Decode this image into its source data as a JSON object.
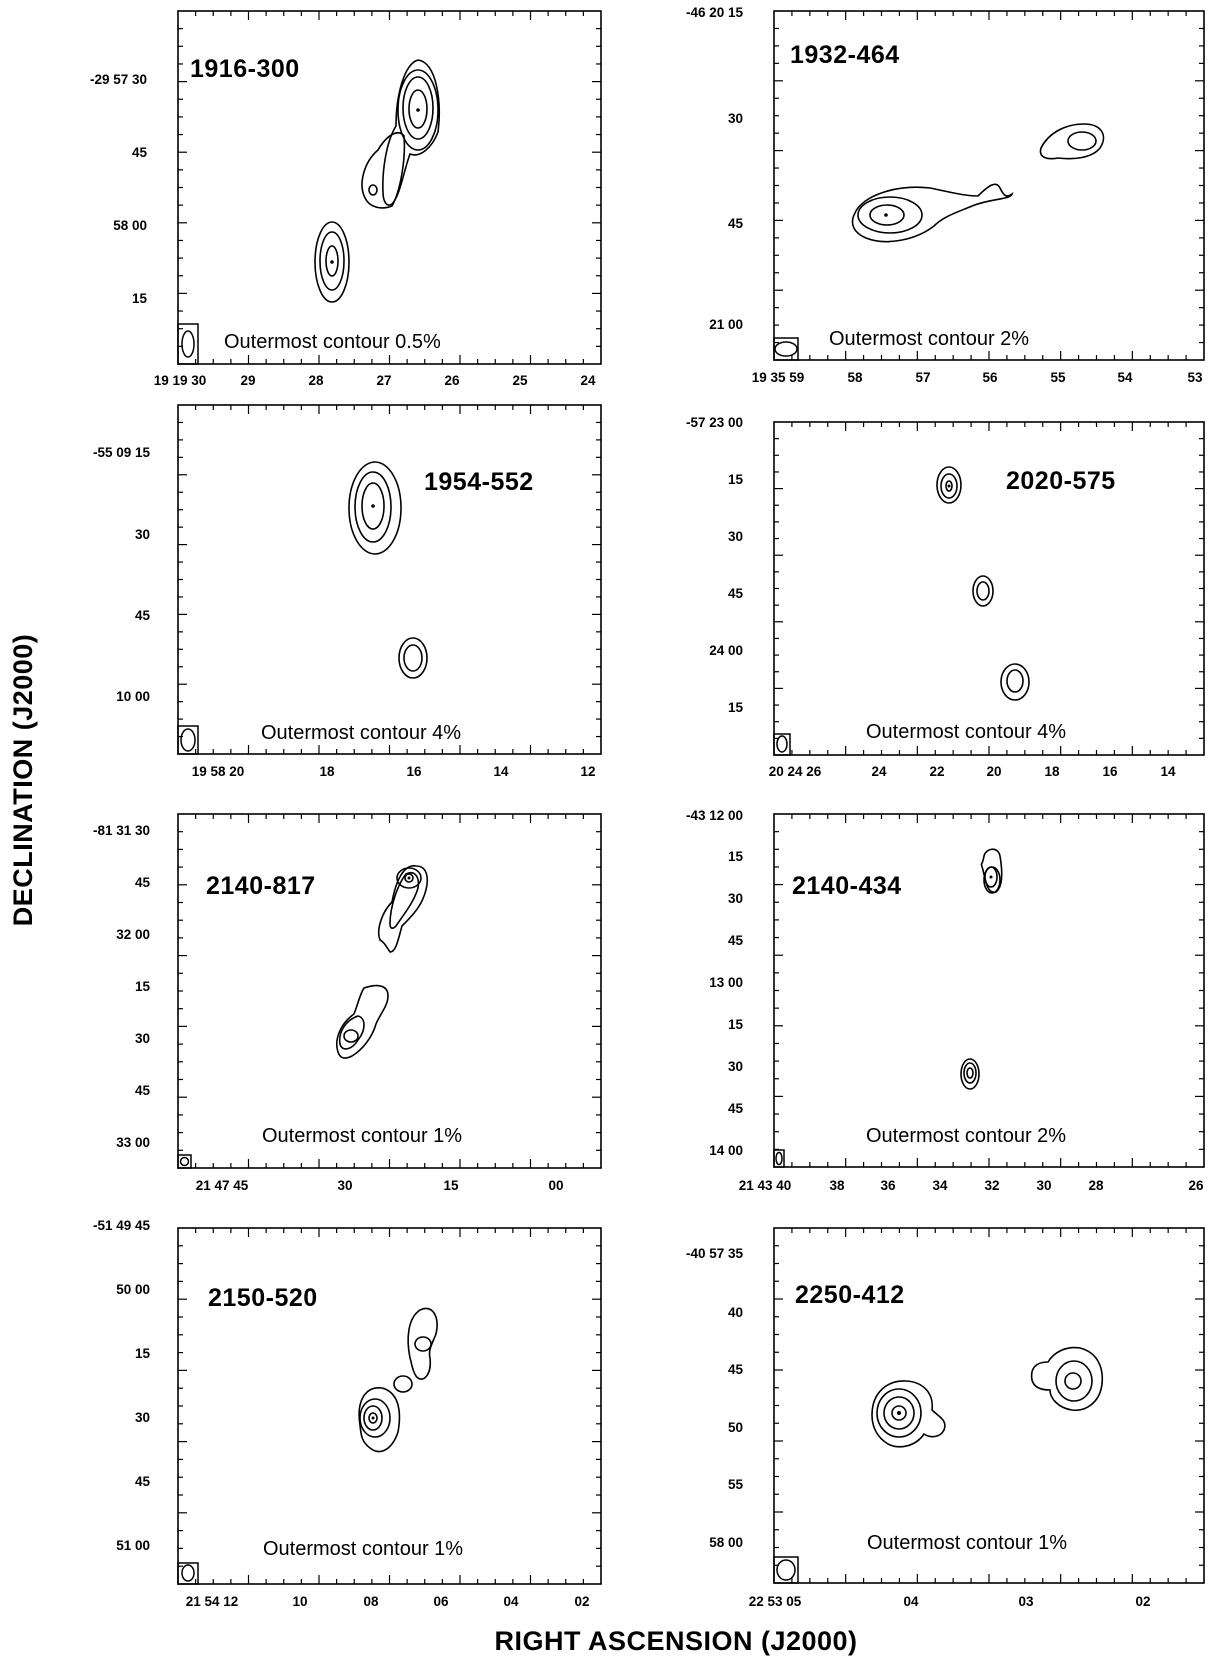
{
  "figure": {
    "ylabel": "DECLINATION   (J2000)",
    "xlabel": "RIGHT ASCENSION   (J2000)"
  },
  "panels": [
    {
      "source": "1916-300",
      "note": "Outermost contour 0.5%",
      "yticks": [
        "-29 57 30",
        "45",
        "58 00",
        "15"
      ],
      "xticks": [
        "19 19 30",
        "29",
        "28",
        "27",
        "26",
        "25",
        "24"
      ],
      "components": [
        {
          "ra_frac": 0.62,
          "dec_frac": 0.22,
          "contours": 4,
          "peak": true
        },
        {
          "ra_frac": 0.36,
          "dec_frac": 0.73,
          "contours": 3,
          "peak": true
        },
        {
          "ra_frac": 0.46,
          "dec_frac": 0.46,
          "contours": 1,
          "peak": false
        }
      ]
    },
    {
      "source": "1932-464",
      "note": "Outermost contour 2%",
      "yticks": [
        "-46 20 15",
        "30",
        "45",
        "21 00"
      ],
      "xticks": [
        "19 35 59",
        "58",
        "57",
        "56",
        "55",
        "54",
        "53"
      ],
      "components": [
        {
          "ra_frac": 0.27,
          "dec_frac": 0.58,
          "contours": 3,
          "peak": true
        },
        {
          "ra_frac": 0.72,
          "dec_frac": 0.38,
          "contours": 2,
          "peak": false
        }
      ]
    },
    {
      "source": "1954-552",
      "note": "Outermost contour 4%",
      "yticks": [
        "-55 09 15",
        "30",
        "45",
        "10 00"
      ],
      "xticks": [
        "19 58 20",
        "18",
        "16",
        "14",
        "12"
      ],
      "components": [
        {
          "ra_frac": 0.47,
          "dec_frac": 0.28,
          "contours": 4,
          "peak": true
        },
        {
          "ra_frac": 0.6,
          "dec_frac": 0.72,
          "contours": 2,
          "peak": false
        }
      ]
    },
    {
      "source": "2020-575",
      "note": "Outermost contour 4%",
      "yticks": [
        "-57 23 00",
        "15",
        "30",
        "45",
        "24 00",
        "15"
      ],
      "xticks": [
        "20 24 26",
        "24",
        "22",
        "20",
        "18",
        "16",
        "14"
      ],
      "components": [
        {
          "ra_frac": 0.42,
          "dec_frac": 0.2,
          "contours": 3,
          "peak": true
        },
        {
          "ra_frac": 0.5,
          "dec_frac": 0.49,
          "contours": 2,
          "peak": false
        },
        {
          "ra_frac": 0.57,
          "dec_frac": 0.79,
          "contours": 2,
          "peak": false
        }
      ]
    },
    {
      "source": "2140-817",
      "note": "Outermost contour 1%",
      "yticks": [
        "-81 31 30",
        "45",
        "32 00",
        "15",
        "30",
        "45",
        "33 00"
      ],
      "xticks": [
        "21 47 45",
        "30",
        "15",
        "00"
      ],
      "components": [
        {
          "ra_frac": 0.55,
          "dec_frac": 0.32,
          "contours": 3,
          "peak": true
        },
        {
          "ra_frac": 0.42,
          "dec_frac": 0.64,
          "contours": 3,
          "peak": false
        }
      ]
    },
    {
      "source": "2140-434",
      "note": "Outermost contour 2%",
      "yticks": [
        "-43 12 00",
        "15",
        "30",
        "45",
        "13 00",
        "15",
        "30",
        "45",
        "14 00"
      ],
      "xticks": [
        "21 43 40",
        "38",
        "36",
        "34",
        "32",
        "30",
        "28",
        "26"
      ],
      "components": [
        {
          "ra_frac": 0.5,
          "dec_frac": 0.2,
          "contours": 3,
          "peak": true
        },
        {
          "ra_frac": 0.45,
          "dec_frac": 0.73,
          "contours": 3,
          "peak": false
        }
      ]
    },
    {
      "source": "2150-520",
      "note": "Outermost contour 1%",
      "yticks": [
        "-51 49 45",
        "50 00",
        "15",
        "30",
        "45",
        "51 00"
      ],
      "xticks": [
        "21 54 12",
        "10",
        "08",
        "06",
        "04",
        "02"
      ],
      "components": [
        {
          "ra_frac": 0.57,
          "dec_frac": 0.38,
          "contours": 2,
          "peak": true
        },
        {
          "ra_frac": 0.45,
          "dec_frac": 0.62,
          "contours": 4,
          "peak": true
        },
        {
          "ra_frac": 0.53,
          "dec_frac": 0.53,
          "contours": 1,
          "peak": false
        }
      ]
    },
    {
      "source": "2250-412",
      "note": "Outermost contour 1%",
      "yticks": [
        "-40 57 35",
        "40",
        "45",
        "50",
        "55",
        "58 00"
      ],
      "xticks": [
        "22 53 05",
        "04",
        "03",
        "02"
      ],
      "components": [
        {
          "ra_frac": 0.3,
          "dec_frac": 0.48,
          "contours": 4,
          "peak": true
        },
        {
          "ra_frac": 0.72,
          "dec_frac": 0.4,
          "contours": 3,
          "peak": true
        }
      ]
    }
  ]
}
